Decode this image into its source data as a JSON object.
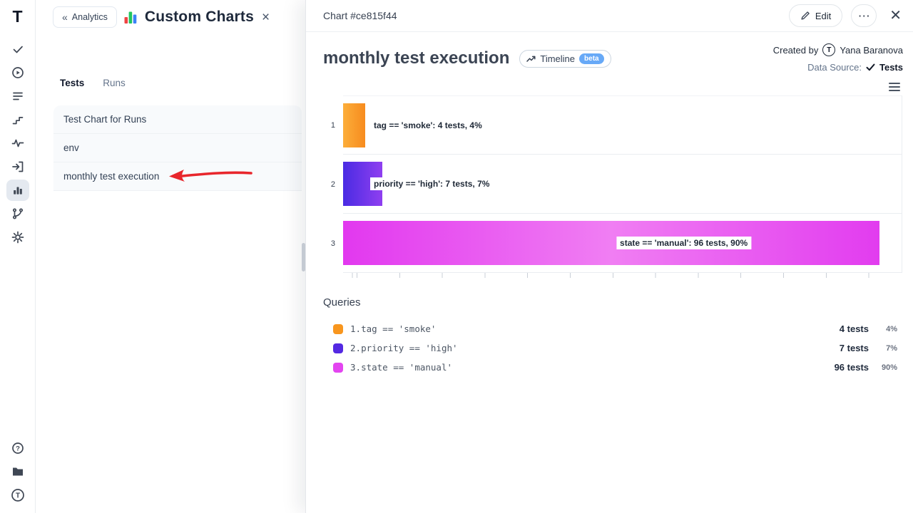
{
  "left_panel": {
    "back_label": "Analytics",
    "title": "Custom Charts",
    "tabs": [
      {
        "label": "Tests",
        "active": true
      },
      {
        "label": "Runs",
        "active": false
      }
    ],
    "items": [
      "Test Chart for Runs",
      "env",
      "monthly test execution"
    ]
  },
  "drawer": {
    "header": {
      "title": "Chart #ce815f44",
      "edit_label": "Edit"
    },
    "chart_title": "monthly test execution",
    "timeline_badge": {
      "label": "Timeline",
      "beta": "beta"
    },
    "created_by_label": "Created by",
    "created_by_name": "Yana Baranova",
    "avatar_letter": "T",
    "data_source_label": "Data Source:",
    "data_source_value": "Tests",
    "queries_title": "Queries",
    "queries": [
      {
        "index": "1.",
        "query": "tag == 'smoke'",
        "tests": "4 tests",
        "percent": "4%"
      },
      {
        "index": "2.",
        "query": "priority == 'high'",
        "tests": "7 tests",
        "percent": "7%"
      },
      {
        "index": "3.",
        "query": "state == 'manual'",
        "tests": "96 tests",
        "percent": "90%"
      }
    ]
  },
  "chart_data": {
    "type": "bar",
    "orientation": "horizontal",
    "title": "monthly test execution",
    "categories": [
      "1",
      "2",
      "3"
    ],
    "xlim": [
      0,
      100
    ],
    "legend_position": "below",
    "grid": true,
    "bars": [
      {
        "row": "1",
        "query": "tag == 'smoke'",
        "tests": 4,
        "percent": 4,
        "label": "tag == 'smoke': 4 tests, 4%",
        "color": "#f8961e",
        "gradient": [
          "#fcae3a",
          "#f78b1e"
        ]
      },
      {
        "row": "2",
        "query": "priority == 'high'",
        "tests": 7,
        "percent": 7,
        "label": "priority == 'high': 7 tests, 7%",
        "color": "#5429e2",
        "gradient": [
          "#4a2be3",
          "#8f3ff0"
        ]
      },
      {
        "row": "3",
        "query": "state == 'manual'",
        "tests": 96,
        "percent": 90,
        "label": "state == 'manual': 96 tests, 90%",
        "color": "#e345f0",
        "gradient": [
          "#e238ef",
          "#f07ef3",
          "#e23cef"
        ]
      }
    ]
  },
  "colors": {
    "accent_selected": "#e4e9f0",
    "beta_pill": "#67a9f7",
    "annotation_arrow": "#e8262c"
  }
}
